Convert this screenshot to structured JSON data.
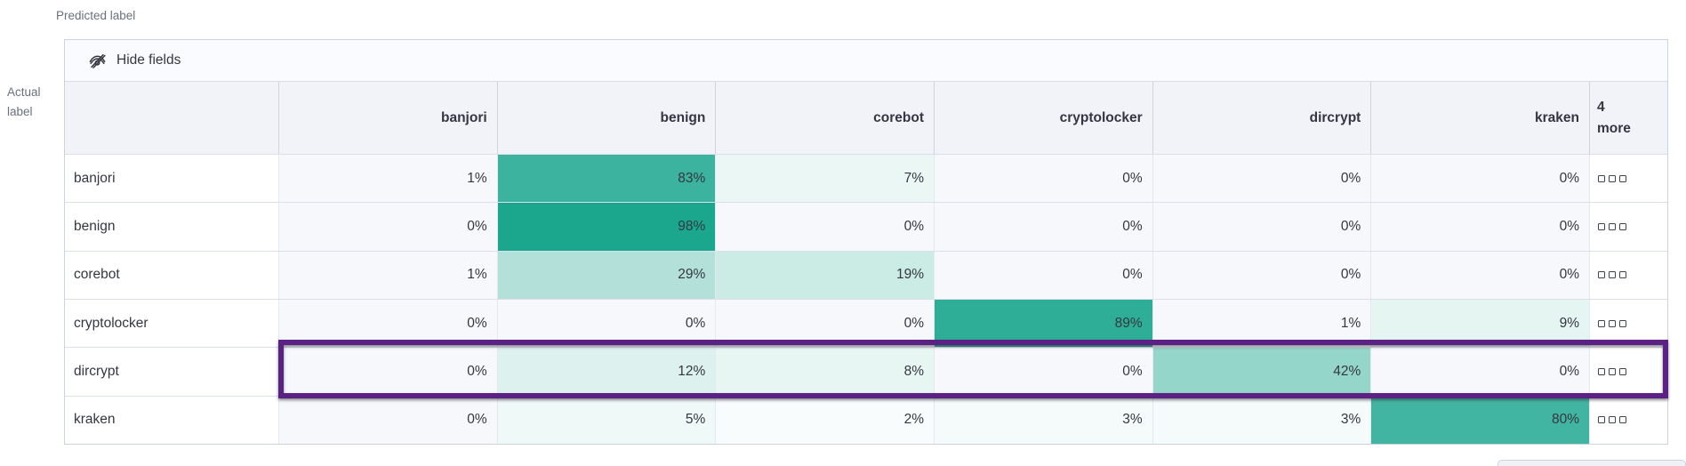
{
  "axis": {
    "predicted": "Predicted label",
    "actual_line1": "Actual",
    "actual_line2": "label"
  },
  "toolbar": {
    "hide_fields_label": "Hide fields",
    "hide_fields_icon": "eye-closed-icon"
  },
  "matrix": {
    "more_column_label": "4 more",
    "more_cell_icon": "boxes-icon",
    "columns": [
      "banjori",
      "benign",
      "corebot",
      "cryptolocker",
      "dircrypt",
      "kraken"
    ],
    "rows": [
      {
        "label": "banjori",
        "values": [
          1,
          83,
          7,
          0,
          0,
          0
        ]
      },
      {
        "label": "benign",
        "values": [
          0,
          98,
          0,
          0,
          0,
          0
        ]
      },
      {
        "label": "corebot",
        "values": [
          1,
          29,
          19,
          0,
          0,
          0
        ]
      },
      {
        "label": "cryptolocker",
        "values": [
          0,
          0,
          0,
          89,
          1,
          9
        ]
      },
      {
        "label": "dircrypt",
        "values": [
          0,
          12,
          8,
          0,
          42,
          0
        ]
      },
      {
        "label": "kraken",
        "values": [
          0,
          5,
          2,
          3,
          3,
          80
        ]
      }
    ],
    "value_suffix": "%",
    "highlighted_row": "dircrypt"
  },
  "colors": {
    "heat_base": "#17a58c",
    "zero_cell_bg": "#f6f8fb",
    "highlight_purple": "#5b2185",
    "header_bg": "#f1f3f9",
    "toolbar_bg": "#fafbfe",
    "text": "#343741",
    "muted_text": "#69707d",
    "outer_border": "#ccd3e0"
  },
  "chart_data": {
    "type": "heatmap",
    "xlabel": "Predicted label",
    "ylabel": "Actual label",
    "x_categories": [
      "banjori",
      "benign",
      "corebot",
      "cryptolocker",
      "dircrypt",
      "kraken"
    ],
    "x_overflow_label": "4 more",
    "y_categories": [
      "banjori",
      "benign",
      "corebot",
      "cryptolocker",
      "dircrypt",
      "kraken"
    ],
    "values_percent": [
      [
        1,
        83,
        7,
        0,
        0,
        0
      ],
      [
        0,
        98,
        0,
        0,
        0,
        0
      ],
      [
        1,
        29,
        19,
        0,
        0,
        0
      ],
      [
        0,
        0,
        0,
        89,
        1,
        9
      ],
      [
        0,
        12,
        8,
        0,
        42,
        0
      ],
      [
        0,
        5,
        2,
        3,
        3,
        80
      ]
    ],
    "units": "%",
    "annotations": [
      "row 'dircrypt' outlined in purple"
    ],
    "legend": "none",
    "color_scale": "white-to-teal by value"
  }
}
